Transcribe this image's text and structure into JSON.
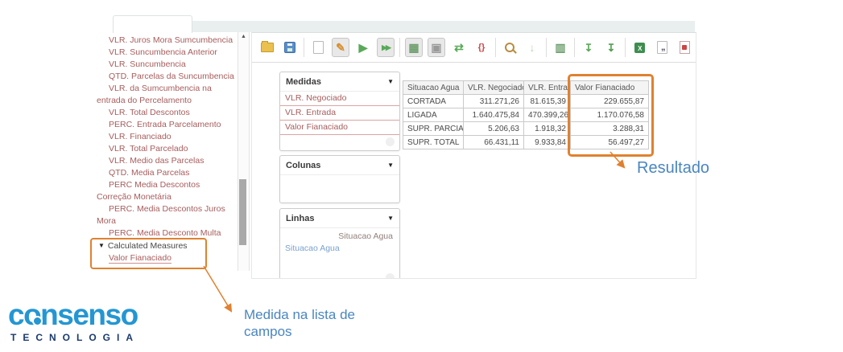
{
  "colors": {
    "accent_orange": "#e0812f",
    "annotation_blue": "#4a86c0",
    "logo_blue": "#2496d3",
    "logo_navy": "#1b3a6d",
    "measure_red": "#a85c5c",
    "row_item_blue": "#7ba1cf"
  },
  "field_list": {
    "items": [
      "VLR. Juros Mora Sumcumbencia",
      "VLR. Suncumbencia Anterior",
      "VLR. Suncumbencia",
      "QTD. Parcelas da Suncumbencia",
      "VLR. da Sumcumbencia na entrada do Percelamento",
      "VLR. Total Descontos",
      "PERC. Entrada Parcelamento",
      "VLR. Financiado",
      "VLR. Total Parcelado",
      "VLR. Medio das Parcelas",
      "QTD. Media Parcelas",
      "PERC Media Descontos Correção Monetária",
      "PERC. Media Descontos Juros Mora",
      "PERC. Media Desconto Multa"
    ],
    "group": {
      "label": "Calculated Measures",
      "children": [
        "Valor Fianaciado"
      ]
    }
  },
  "toolbar": {
    "items": [
      {
        "name": "open-folder-icon",
        "kind": "folder"
      },
      {
        "name": "save-icon",
        "kind": "floppy"
      },
      {
        "kind": "sep"
      },
      {
        "name": "new-query-icon",
        "kind": "page"
      },
      {
        "name": "edit-query-icon",
        "kind": "glyph",
        "glyph": "✎",
        "color": "#d78f2e",
        "pressed": true
      },
      {
        "name": "run-query-icon",
        "kind": "glyph",
        "glyph": "▶",
        "color": "#58a958"
      },
      {
        "name": "auto-run-icon",
        "kind": "glyph",
        "glyph": "▶▶",
        "color": "#58a958",
        "pressed": true
      },
      {
        "kind": "sep"
      },
      {
        "name": "toggle-fields-icon",
        "kind": "glyph",
        "glyph": "▦",
        "color": "#6f9f6f",
        "pressed": true
      },
      {
        "name": "non-empty-cells-icon",
        "kind": "glyph",
        "glyph": "▣",
        "color": "#999999",
        "pressed": true
      },
      {
        "name": "swap-axis-icon",
        "kind": "glyph",
        "glyph": "⇄",
        "color": "#58a958"
      },
      {
        "name": "mdx-editor-icon",
        "kind": "glyph",
        "glyph": "{}",
        "color": "#cc4444"
      },
      {
        "kind": "sep"
      },
      {
        "name": "zoom-icon",
        "kind": "zoom"
      },
      {
        "name": "drill-down-icon",
        "kind": "glyph",
        "glyph": "↓",
        "color": "#b7d6b7"
      },
      {
        "kind": "sep"
      },
      {
        "name": "drill-through-icon",
        "kind": "glyph",
        "glyph": "▥",
        "color": "#6f9f6f"
      },
      {
        "kind": "sep"
      },
      {
        "name": "export-xls-icon",
        "kind": "glyph",
        "glyph": "↧",
        "color": "#58a958"
      },
      {
        "name": "export-csv-icon",
        "kind": "glyph",
        "glyph": "↧",
        "color": "#4f9f4f"
      },
      {
        "kind": "sep"
      },
      {
        "name": "excel-icon",
        "kind": "excel",
        "glyph": "X"
      },
      {
        "name": "export-doc-icon",
        "kind": "pagec",
        "glyph": "„"
      },
      {
        "name": "export-pdf-icon",
        "kind": "pdfcut"
      }
    ]
  },
  "panels": {
    "medidas": {
      "title": "Medidas",
      "items": [
        "VLR. Negociado",
        "VLR. Entrada",
        "Valor Fianaciado"
      ]
    },
    "colunas": {
      "title": "Colunas"
    },
    "linhas": {
      "title": "Linhas",
      "hierarchy_caption": "Situacao Agua",
      "items": [
        "Situacao Agua"
      ]
    }
  },
  "table": {
    "columns": [
      "Situacao Agua",
      "VLR. Negociado",
      "VLR. Entrada",
      "Valor Fianaciado"
    ],
    "rows": [
      [
        "CORTADA",
        "311.271,26",
        "81.615,39",
        "229.655,87"
      ],
      [
        "LIGADA",
        "1.640.475,84",
        "470.399,26",
        "1.170.076,58"
      ],
      [
        "SUPR. PARCIAL",
        "5.206,63",
        "1.918,32",
        "3.288,31"
      ],
      [
        "SUPR. TOTAL",
        "66.431,11",
        "9.933,84",
        "56.497,27"
      ]
    ]
  },
  "annotations": {
    "resultado": "Resultado",
    "medida_note": "Medida na lista de campos"
  },
  "logo": {
    "name": "consenso",
    "subtitle": "TECNOLOGIA"
  }
}
